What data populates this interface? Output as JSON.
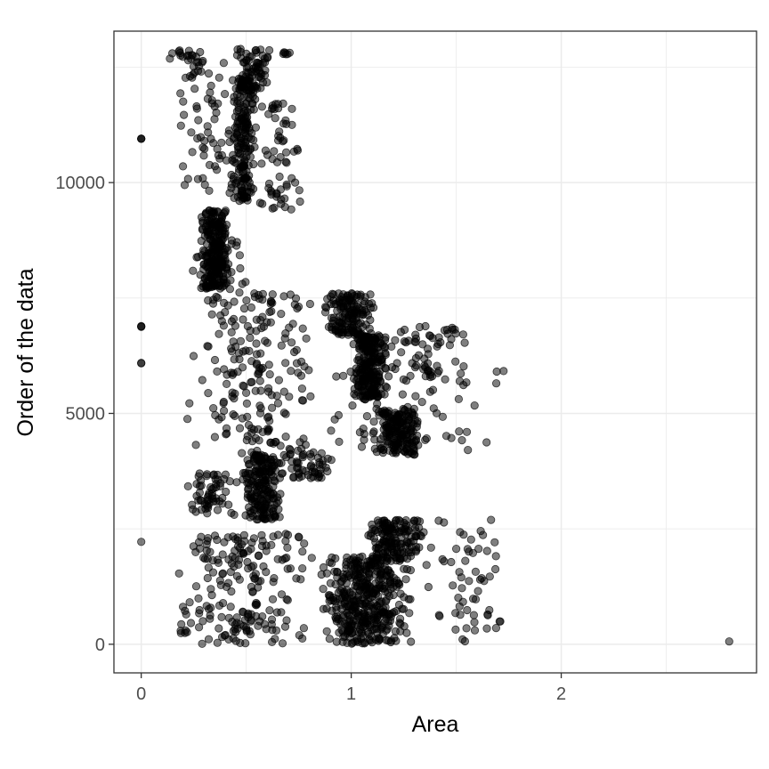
{
  "chart_data": {
    "type": "scatter",
    "title": "",
    "xlabel": "Area",
    "ylabel": "Order of the data",
    "xlim": [
      -0.13,
      2.93
    ],
    "ylim": [
      -620,
      13280
    ],
    "x_ticks": [
      0,
      1,
      2
    ],
    "x_tick_labels": [
      "0",
      "1",
      "2"
    ],
    "y_ticks": [
      0,
      5000,
      10000
    ],
    "y_tick_labels": [
      "0",
      "5000",
      "10000"
    ],
    "grid": true,
    "legend": "none",
    "colors": {
      "point": "#000000",
      "grid": "#ebebeb",
      "panel_border": "#333333"
    },
    "clusters": [
      {
        "x": [
          0.0,
          0.0
        ],
        "y": [
          10950,
          10950
        ],
        "n": 3
      },
      {
        "x": [
          0.0,
          0.0
        ],
        "y": [
          6860,
          6900
        ],
        "n": 3
      },
      {
        "x": [
          0.0,
          0.0
        ],
        "y": [
          6080,
          6120
        ],
        "n": 2
      },
      {
        "x": [
          0.0,
          0.0
        ],
        "y": [
          2200,
          2220
        ],
        "n": 1
      },
      {
        "x": [
          0.1,
          0.35
        ],
        "y": [
          12600,
          12900
        ],
        "n": 20
      },
      {
        "x": [
          0.15,
          0.45
        ],
        "y": [
          9700,
          12600
        ],
        "n": 60
      },
      {
        "x": [
          0.45,
          0.62
        ],
        "y": [
          12000,
          12900
        ],
        "n": 70
      },
      {
        "x": [
          0.65,
          0.72
        ],
        "y": [
          12780,
          12850
        ],
        "n": 6
      },
      {
        "x": [
          0.42,
          0.55
        ],
        "y": [
          9600,
          12300
        ],
        "n": 200
      },
      {
        "x": [
          0.55,
          0.78
        ],
        "y": [
          9400,
          11800
        ],
        "n": 60
      },
      {
        "x": [
          0.28,
          0.42
        ],
        "y": [
          7700,
          9400
        ],
        "n": 230
      },
      {
        "x": [
          0.2,
          0.55
        ],
        "y": [
          7600,
          8900
        ],
        "n": 40
      },
      {
        "x": [
          0.2,
          0.85
        ],
        "y": [
          4100,
          7600
        ],
        "n": 200
      },
      {
        "x": [
          0.85,
          1.12
        ],
        "y": [
          6700,
          7600
        ],
        "n": 150
      },
      {
        "x": [
          1.0,
          1.18
        ],
        "y": [
          5300,
          6700
        ],
        "n": 240
      },
      {
        "x": [
          1.15,
          1.58
        ],
        "y": [
          5800,
          6900
        ],
        "n": 60
      },
      {
        "x": [
          0.8,
          1.72
        ],
        "y": [
          4200,
          6000
        ],
        "n": 70
      },
      {
        "x": [
          1.1,
          1.36
        ],
        "y": [
          4100,
          5100
        ],
        "n": 170
      },
      {
        "x": [
          1.6,
          1.8
        ],
        "y": [
          5900,
          5920
        ],
        "n": 2
      },
      {
        "x": [
          0.48,
          0.68
        ],
        "y": [
          2700,
          4100
        ],
        "n": 200
      },
      {
        "x": [
          0.2,
          0.48
        ],
        "y": [
          2800,
          3700
        ],
        "n": 60
      },
      {
        "x": [
          0.65,
          0.95
        ],
        "y": [
          3600,
          4200
        ],
        "n": 50
      },
      {
        "x": [
          0.1,
          0.85
        ],
        "y": [
          0,
          2400
        ],
        "n": 200
      },
      {
        "x": [
          0.85,
          1.3
        ],
        "y": [
          0,
          1900
        ],
        "n": 420
      },
      {
        "x": [
          1.05,
          1.35
        ],
        "y": [
          1800,
          2700
        ],
        "n": 160
      },
      {
        "x": [
          1.3,
          1.8
        ],
        "y": [
          0,
          2700
        ],
        "n": 60
      },
      {
        "x": [
          2.8,
          2.8
        ],
        "y": [
          60,
          60
        ],
        "n": 1
      }
    ]
  }
}
